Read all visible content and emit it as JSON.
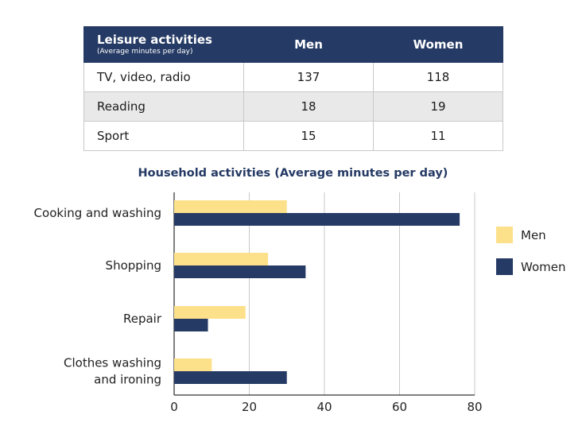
{
  "table": {
    "header": {
      "title": "Leisure activities",
      "subtitle": "(Average minutes per day)",
      "col_men": "Men",
      "col_women": "Women"
    },
    "rows": [
      {
        "label": "TV, video, radio",
        "men": "137",
        "women": "118"
      },
      {
        "label": "Reading",
        "men": "18",
        "women": "19"
      },
      {
        "label": "Sport",
        "men": "15",
        "women": "11"
      }
    ]
  },
  "colors": {
    "men": "#fde08a",
    "women": "#253a64",
    "title": "#253a64",
    "grid": "#c8c8c8",
    "axis": "#000000"
  },
  "chart_data": {
    "type": "bar",
    "orientation": "horizontal",
    "title": "Household activities (Average minutes per day)",
    "categories": [
      "Cooking and washing",
      "Shopping",
      "Repair",
      "Clothes washing and ironing"
    ],
    "category_lines": [
      [
        "Cooking and washing"
      ],
      [
        "Shopping"
      ],
      [
        "Repair"
      ],
      [
        "Clothes washing",
        "and ironing"
      ]
    ],
    "series": [
      {
        "name": "Men",
        "values": [
          30,
          25,
          19,
          10
        ]
      },
      {
        "name": "Women",
        "values": [
          76,
          35,
          9,
          30
        ]
      }
    ],
    "xlim": [
      0,
      80
    ],
    "xticks": [
      "0",
      "20",
      "40",
      "60",
      "80"
    ],
    "xlabel": "",
    "ylabel": "",
    "grid": true,
    "legend_position": "right"
  }
}
